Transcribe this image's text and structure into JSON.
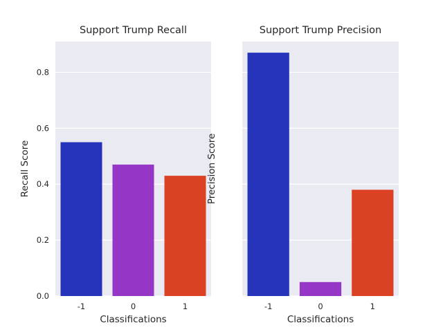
{
  "chart_data": [
    {
      "type": "bar",
      "title": "Support Trump Recall",
      "xlabel": "Classifications",
      "ylabel": "Recall Score",
      "categories": [
        "-1",
        "0",
        "1"
      ],
      "values": [
        0.55,
        0.47,
        0.43
      ],
      "colors": [
        "#2634bc",
        "#9536c6",
        "#db4223"
      ],
      "ylim": [
        0,
        0.91
      ],
      "yticks": [
        0.0,
        0.2,
        0.4,
        0.6,
        0.8
      ],
      "ytick_labels": [
        "0.0",
        "0.2",
        "0.4",
        "0.6",
        "0.8"
      ],
      "show_ytick_labels": true,
      "grid": true,
      "background": "#eaeaf2"
    },
    {
      "type": "bar",
      "title": "Support Trump Precision",
      "xlabel": "Classifications",
      "ylabel": "Precision Score",
      "categories": [
        "-1",
        "0",
        "1"
      ],
      "values": [
        0.87,
        0.05,
        0.38
      ],
      "colors": [
        "#2634bc",
        "#9536c6",
        "#db4223"
      ],
      "ylim": [
        0,
        0.91
      ],
      "yticks": [
        0.0,
        0.2,
        0.4,
        0.6,
        0.8
      ],
      "ytick_labels": [
        "0.0",
        "0.2",
        "0.4",
        "0.6",
        "0.8"
      ],
      "show_ytick_labels": false,
      "grid": true,
      "background": "#eaeaf2"
    }
  ]
}
